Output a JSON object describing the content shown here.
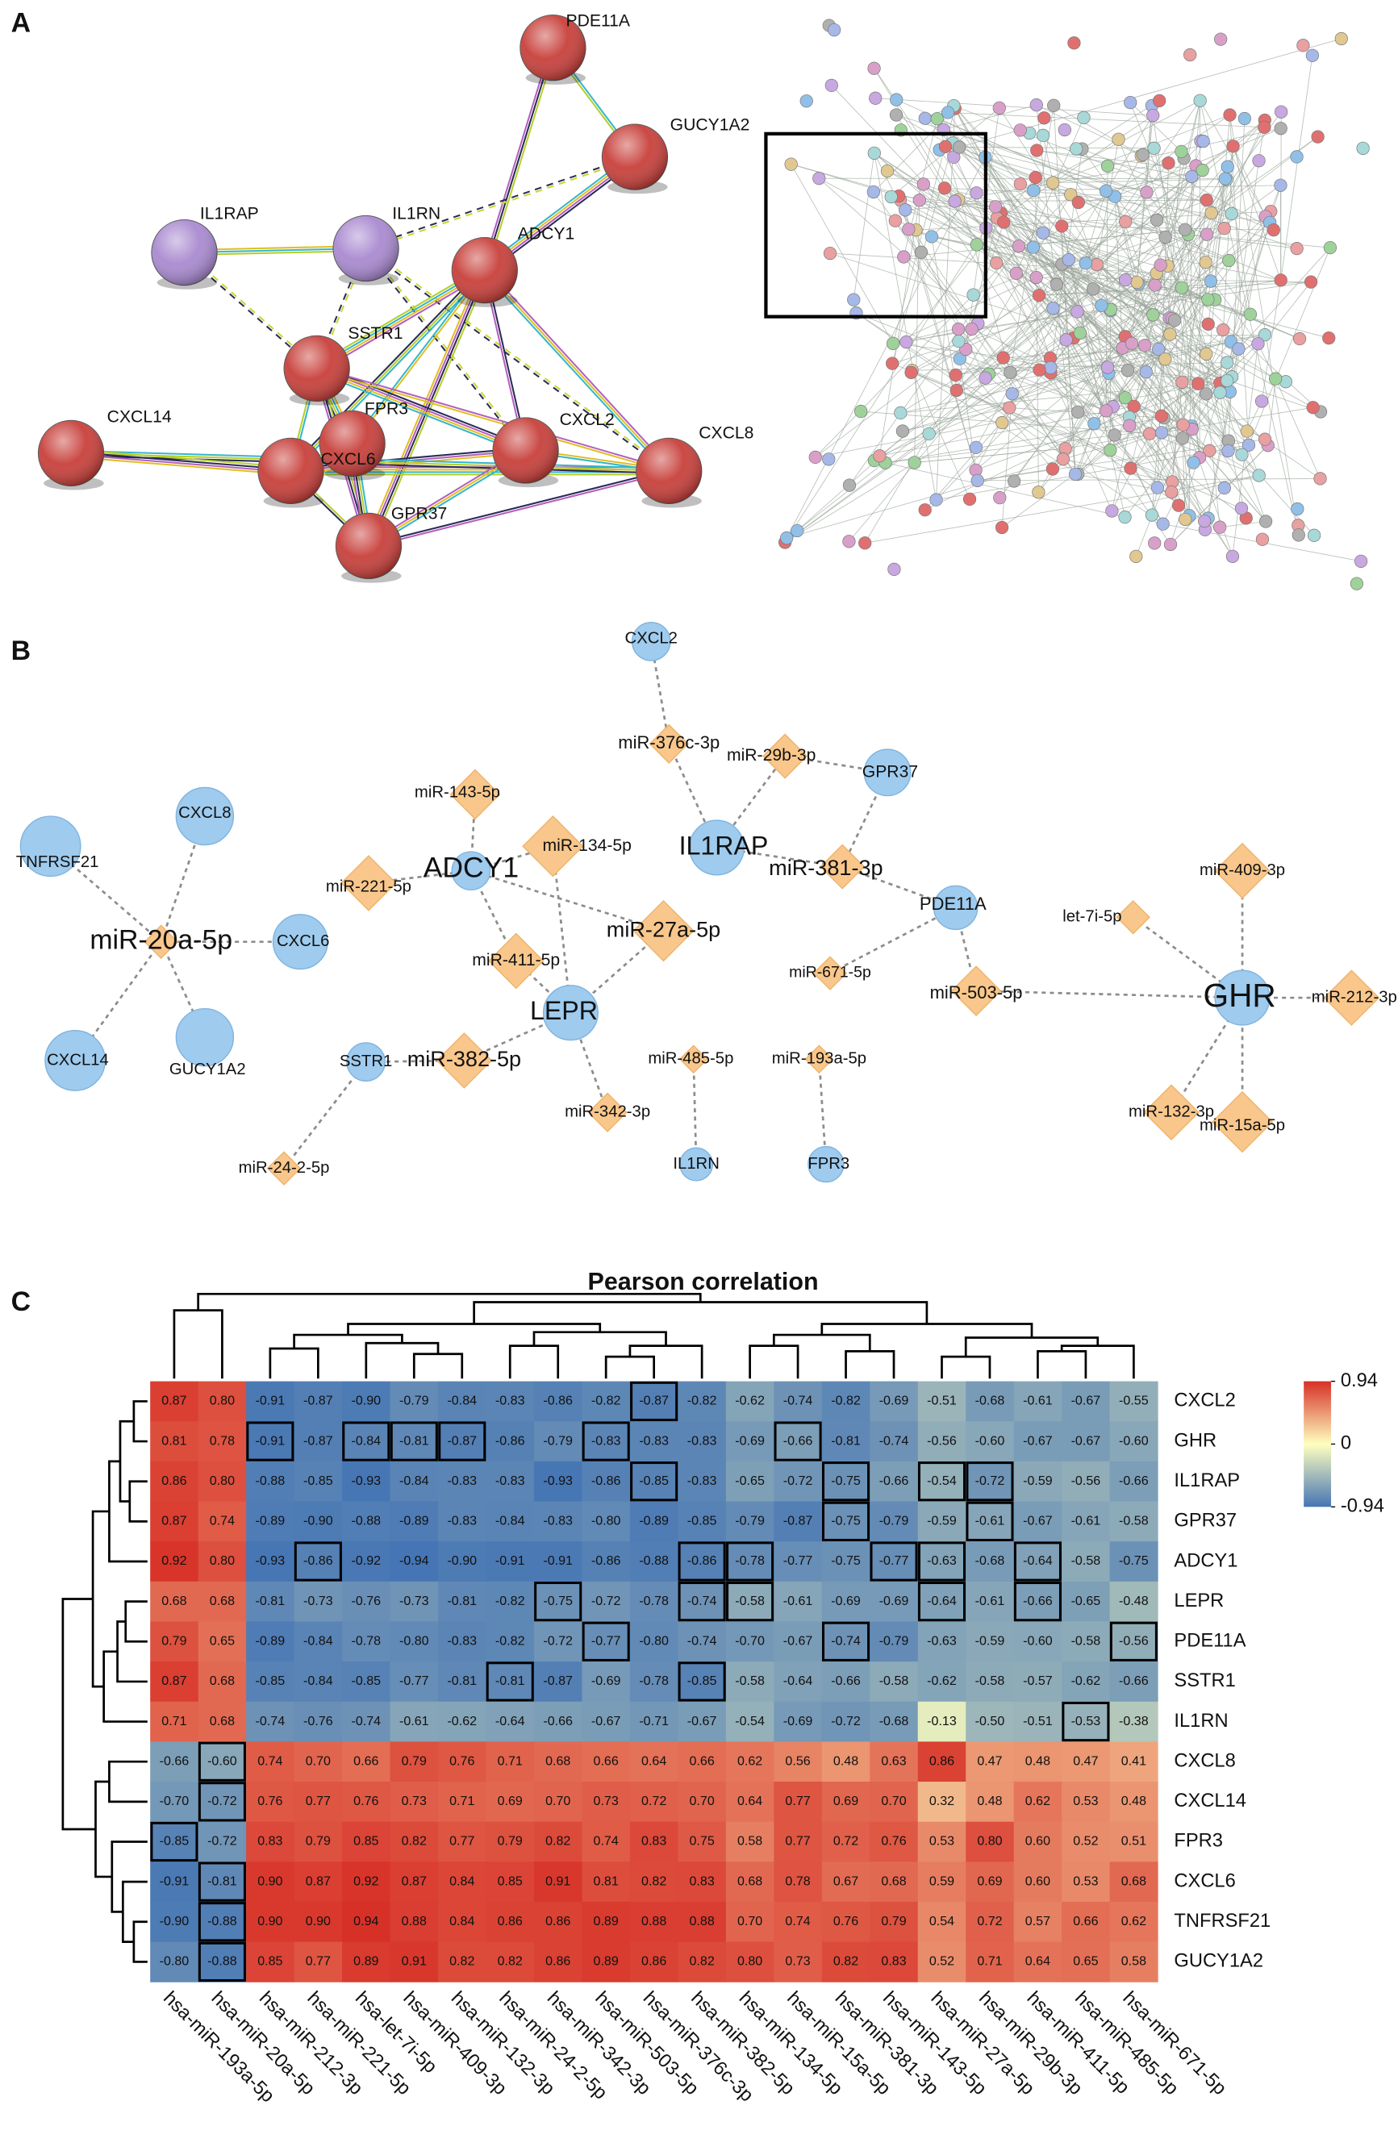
{
  "panel_a": {
    "label": "A",
    "nodes": [
      {
        "label": "PDE11A",
        "color": "#c8403b"
      },
      {
        "label": "GUCY1A2",
        "color": "#c8403b"
      },
      {
        "label": "IL1RAP",
        "color": "#a98ad0"
      },
      {
        "label": "IL1RN",
        "color": "#a98ad0"
      },
      {
        "label": "ADCY1",
        "color": "#c8403b"
      },
      {
        "label": "SSTR1",
        "color": "#c8403b"
      },
      {
        "label": "FPR3",
        "color": "#c8403b"
      },
      {
        "label": "CXCL14",
        "color": "#c8403b"
      },
      {
        "label": "CXCL2",
        "color": "#c8403b"
      },
      {
        "label": "CXCL8",
        "color": "#c8403b"
      },
      {
        "label": "CXCL6",
        "color": "#c8403b"
      },
      {
        "label": "GPR37",
        "color": "#c8403b"
      }
    ],
    "edges": [
      [
        0,
        1
      ],
      [
        0,
        4
      ],
      [
        1,
        4
      ],
      [
        1,
        3
      ],
      [
        2,
        3
      ],
      [
        3,
        5
      ],
      [
        3,
        8
      ],
      [
        3,
        9
      ],
      [
        4,
        5
      ],
      [
        4,
        6
      ],
      [
        4,
        10
      ],
      [
        4,
        11
      ],
      [
        4,
        8
      ],
      [
        4,
        9
      ],
      [
        5,
        6
      ],
      [
        5,
        10
      ],
      [
        5,
        11
      ],
      [
        5,
        8
      ],
      [
        5,
        9
      ],
      [
        6,
        10
      ],
      [
        6,
        11
      ],
      [
        10,
        11
      ],
      [
        10,
        8
      ],
      [
        10,
        9
      ],
      [
        8,
        9
      ],
      [
        7,
        9
      ],
      [
        7,
        10
      ],
      [
        11,
        9
      ],
      [
        11,
        8
      ],
      [
        2,
        5
      ]
    ]
  },
  "panel_b": {
    "label": "B",
    "gene_color": "#9ecbee",
    "mirna_color": "#f9c78b",
    "genes": [
      "CXCL2",
      "GPR37",
      "IL1RAP",
      "ADCY1",
      "PDE11A",
      "TNFRSF21",
      "CXCL8",
      "CXCL6",
      "CXCL14",
      "GUCY1A2",
      "LEPR",
      "SSTR1",
      "IL1RN",
      "FPR3",
      "GHR"
    ],
    "mirnas": [
      "miR-376c-3p",
      "miR-29b-3p",
      "miR-143-5p",
      "miR-134-5p",
      "miR-221-5p",
      "miR-27a-5p",
      "miR-411-5p",
      "miR-381-3p",
      "miR-671-5p",
      "miR-503-5p",
      "miR-20a-5p",
      "miR-382-5p",
      "miR-342-3p",
      "miR-485-5p",
      "miR-193a-5p",
      "miR-24-2-5p",
      "miR-409-3p",
      "let-7i-5p",
      "miR-212-3p",
      "miR-132-3p",
      "miR-15a-5p"
    ],
    "edges": [
      [
        5,
        10
      ],
      [
        6,
        10
      ],
      [
        7,
        10
      ],
      [
        8,
        10
      ],
      [
        9,
        10
      ],
      [
        3,
        4
      ],
      [
        3,
        2
      ],
      [
        3,
        3
      ],
      [
        3,
        6
      ],
      [
        3,
        5
      ],
      [
        2,
        0
      ],
      [
        2,
        1
      ],
      [
        2,
        7
      ],
      [
        0,
        0
      ],
      [
        1,
        1
      ],
      [
        1,
        7
      ],
      [
        4,
        7
      ],
      [
        4,
        8
      ],
      [
        4,
        9
      ],
      [
        10,
        3
      ],
      [
        10,
        5
      ],
      [
        10,
        6
      ],
      [
        10,
        11
      ],
      [
        10,
        12
      ],
      [
        11,
        11
      ],
      [
        11,
        15
      ],
      [
        12,
        13
      ],
      [
        13,
        14
      ],
      [
        14,
        9
      ],
      [
        14,
        16
      ],
      [
        14,
        17
      ],
      [
        14,
        18
      ],
      [
        14,
        19
      ],
      [
        14,
        20
      ]
    ]
  },
  "heatmap": {
    "label": "C",
    "type": "heatmap",
    "title": "Pearson correlation",
    "rows": [
      "CXCL2",
      "GHR",
      "IL1RAP",
      "GPR37",
      "ADCY1",
      "LEPR",
      "PDE11A",
      "SSTR1",
      "IL1RN",
      "CXCL8",
      "CXCL14",
      "FPR3",
      "CXCL6",
      "TNFRSF21",
      "GUCY1A2"
    ],
    "columns": [
      "hsa-miR-193a-5p",
      "hsa-miR-20a-5p",
      "hsa-miR-212-3p",
      "hsa-miR-221-5p",
      "hsa-let-7i-5p",
      "hsa-miR-409-3p",
      "hsa-miR-132-3p",
      "hsa-miR-24-2-5p",
      "hsa-miR-342-3p",
      "hsa-miR-503-5p",
      "hsa-miR-376c-3p",
      "hsa-miR-382-5p",
      "hsa-miR-134-5p",
      "hsa-miR-15a-5p",
      "hsa-miR-381-3p",
      "hsa-miR-143-5p",
      "hsa-miR-27a-5p",
      "hsa-miR-29b-3p",
      "hsa-miR-411-5p",
      "hsa-miR-485-5p",
      "hsa-miR-671-5p"
    ],
    "values": [
      [
        0.87,
        0.8,
        -0.91,
        -0.87,
        -0.9,
        -0.79,
        -0.84,
        -0.83,
        -0.86,
        -0.82,
        -0.87,
        -0.82,
        -0.62,
        -0.74,
        -0.82,
        -0.69,
        -0.51,
        -0.68,
        -0.61,
        -0.67,
        -0.55
      ],
      [
        0.81,
        0.78,
        -0.91,
        -0.87,
        -0.84,
        -0.81,
        -0.87,
        -0.86,
        -0.79,
        -0.83,
        -0.83,
        -0.83,
        -0.69,
        -0.66,
        -0.81,
        -0.74,
        -0.56,
        -0.6,
        -0.67,
        -0.67,
        -0.6
      ],
      [
        0.86,
        0.8,
        -0.88,
        -0.85,
        -0.93,
        -0.84,
        -0.83,
        -0.83,
        -0.93,
        -0.86,
        -0.85,
        -0.83,
        -0.65,
        -0.72,
        -0.75,
        -0.66,
        -0.54,
        -0.72,
        -0.59,
        -0.56,
        -0.66
      ],
      [
        0.87,
        0.74,
        -0.89,
        -0.9,
        -0.88,
        -0.89,
        -0.83,
        -0.84,
        -0.83,
        -0.8,
        -0.89,
        -0.85,
        -0.79,
        -0.87,
        -0.75,
        -0.79,
        -0.59,
        -0.61,
        -0.67,
        -0.61,
        -0.58
      ],
      [
        0.92,
        0.8,
        -0.93,
        -0.86,
        -0.92,
        -0.94,
        -0.9,
        -0.91,
        -0.91,
        -0.86,
        -0.88,
        -0.86,
        -0.78,
        -0.77,
        -0.75,
        -0.77,
        -0.63,
        -0.68,
        -0.64,
        -0.58,
        -0.75
      ],
      [
        0.68,
        0.68,
        -0.81,
        -0.73,
        -0.76,
        -0.73,
        -0.81,
        -0.82,
        -0.75,
        -0.72,
        -0.78,
        -0.74,
        -0.58,
        -0.61,
        -0.69,
        -0.69,
        -0.64,
        -0.61,
        -0.66,
        -0.65,
        -0.48
      ],
      [
        0.79,
        0.65,
        -0.89,
        -0.84,
        -0.78,
        -0.8,
        -0.83,
        -0.82,
        -0.72,
        -0.77,
        -0.8,
        -0.74,
        -0.7,
        -0.67,
        -0.74,
        -0.79,
        -0.63,
        -0.59,
        -0.6,
        -0.58,
        -0.56
      ],
      [
        0.87,
        0.68,
        -0.85,
        -0.84,
        -0.85,
        -0.77,
        -0.81,
        -0.81,
        -0.87,
        -0.69,
        -0.78,
        -0.85,
        -0.58,
        -0.64,
        -0.66,
        -0.58,
        -0.62,
        -0.58,
        -0.57,
        -0.62,
        -0.66
      ],
      [
        0.71,
        0.68,
        -0.74,
        -0.76,
        -0.74,
        -0.61,
        -0.62,
        -0.64,
        -0.66,
        -0.67,
        -0.71,
        -0.67,
        -0.54,
        -0.69,
        -0.72,
        -0.68,
        -0.13,
        -0.5,
        -0.51,
        -0.53,
        -0.38
      ],
      [
        -0.66,
        -0.6,
        0.74,
        0.7,
        0.66,
        0.79,
        0.76,
        0.71,
        0.68,
        0.66,
        0.64,
        0.66,
        0.62,
        0.56,
        0.48,
        0.63,
        0.86,
        0.47,
        0.48,
        0.47,
        0.41
      ],
      [
        -0.7,
        -0.72,
        0.76,
        0.77,
        0.76,
        0.73,
        0.71,
        0.69,
        0.7,
        0.73,
        0.72,
        0.7,
        0.64,
        0.77,
        0.69,
        0.7,
        0.32,
        0.48,
        0.62,
        0.53,
        0.48
      ],
      [
        -0.85,
        -0.72,
        0.83,
        0.79,
        0.85,
        0.82,
        0.77,
        0.79,
        0.82,
        0.74,
        0.83,
        0.75,
        0.58,
        0.77,
        0.72,
        0.76,
        0.53,
        0.8,
        0.6,
        0.52,
        0.51
      ],
      [
        -0.91,
        -0.81,
        0.9,
        0.87,
        0.92,
        0.87,
        0.84,
        0.85,
        0.91,
        0.81,
        0.82,
        0.83,
        0.68,
        0.78,
        0.67,
        0.68,
        0.59,
        0.69,
        0.6,
        0.53,
        0.68
      ],
      [
        -0.9,
        -0.88,
        0.9,
        0.9,
        0.94,
        0.88,
        0.84,
        0.86,
        0.86,
        0.89,
        0.88,
        0.88,
        0.7,
        0.74,
        0.76,
        0.79,
        0.54,
        0.72,
        0.57,
        0.66,
        0.62
      ],
      [
        -0.8,
        -0.88,
        0.85,
        0.77,
        0.89,
        0.91,
        0.82,
        0.82,
        0.86,
        0.89,
        0.86,
        0.82,
        0.8,
        0.73,
        0.82,
        0.83,
        0.52,
        0.71,
        0.64,
        0.65,
        0.58
      ]
    ],
    "value_labels": [
      [
        "0.87",
        "0.80",
        "-0.91",
        "-0.87",
        "-0.90",
        "-0.79",
        "-0.84",
        "-0.83",
        "-0.86",
        "-0.82",
        "-0.87",
        "-0.82",
        "-0.62",
        "-0.74",
        "-0.82",
        "-0.69",
        "-0.51",
        "-0.68",
        "-0.61",
        "-0.67",
        "-0.55"
      ],
      [
        "0.81",
        "0.78",
        "-0.91",
        "-0.87",
        "-0.84",
        "-0.81",
        "-0.87",
        "-0.86",
        "-0.79",
        "-0.83",
        "-0.83",
        "-0.83",
        "-0.69",
        "-0.66",
        "-0.81",
        "-0.74",
        "-0.56",
        "-0.60",
        "-0.67",
        "-0.67",
        "-0.60"
      ],
      [
        "0.86",
        "0.80",
        "-0.88",
        "-0.85",
        "-0.93",
        "-0.84",
        "-0.83",
        "-0.83",
        "-0.93",
        "-0.86",
        "-0.85",
        "-0.83",
        "-0.65",
        "-0.72",
        "-0.75",
        "-0.66",
        "-0.54",
        "-0.72",
        "-0.59",
        "-0.56",
        "-0.66"
      ],
      [
        "0.87",
        "0.74",
        "-0.89",
        "-0.90",
        "-0.88",
        "-0.89",
        "-0.83",
        "-0.84",
        "-0.83",
        "-0.80",
        "-0.89",
        "-0.85",
        "-0.79",
        "-0.87",
        "-0.75",
        "-0.79",
        "-0.59",
        "-0.61",
        "-0.67",
        "-0.61",
        "-0.58"
      ],
      [
        "0.92",
        "0.80",
        "-0.93",
        "-0.86",
        "-0.92",
        "-0.94",
        "-0.90",
        "-0.91",
        "-0.91",
        "-0.86",
        "-0.88",
        "-0.86",
        "-0.78",
        "-0.77",
        "-0.75",
        "-0.77",
        "-0.63",
        "-0.68",
        "-0.64",
        "-0.58",
        "-0.75"
      ],
      [
        "0.68",
        "0.68",
        "-0.81",
        "-0.73",
        "-0.76",
        "-0.73",
        "-0.81",
        "-0.82",
        "-0.75",
        "-0.72",
        "-0.78",
        "-0.74",
        "-0.58",
        "-0.61",
        "-0.69",
        "-0.69",
        "-0.64",
        "-0.61",
        "-0.66",
        "-0.65",
        "-0.48"
      ],
      [
        "0.79",
        "0.65",
        "-0.89",
        "-0.84",
        "-0.78",
        "-0.80",
        "-0.83",
        "-0.82",
        "-0.72",
        "-0.77",
        "-0.80",
        "-0.74",
        "-0.70",
        "-0.67",
        "-0.74",
        "-0.79",
        "-0.63",
        "-0.59",
        "-0.60",
        "-0.58",
        "-0.56"
      ],
      [
        "0.87",
        "0.68",
        "-0.85",
        "-0.84",
        "-0.85",
        "-0.77",
        "-0.81",
        "-0.81",
        "-0.87",
        "-0.69",
        "-0.78",
        "-0.85",
        "-0.58",
        "-0.64",
        "-0.66",
        "-0.58",
        "-0.62",
        "-0.58",
        "-0.57",
        "-0.62",
        "-0.66"
      ],
      [
        "0.71",
        "0.68",
        "-0.74",
        "-0.76",
        "-0.74",
        "-0.61",
        "-0.62",
        "-0.64",
        "-0.66",
        "-0.67",
        "-0.71",
        "-0.67",
        "-0.54",
        "-0.69",
        "-0.72",
        "-0.68",
        "-0.13",
        "-0.50",
        "-0.51",
        "-0.53",
        "-0.38"
      ],
      [
        "-0.66",
        "-0.60",
        "0.74",
        "0.70",
        "0.66",
        "0.79",
        "0.76",
        "0.71",
        "0.68",
        "0.66",
        "0.64",
        "0.66",
        "0.62",
        "0.56",
        "0.48",
        "0.63",
        "0.86",
        "0.47",
        "0.48",
        "0.47",
        "0.41"
      ],
      [
        "-0.70",
        "-0.72",
        "0.76",
        "0.77",
        "0.76",
        "0.73",
        "0.71",
        "0.69",
        "0.70",
        "0.73",
        "0.72",
        "0.70",
        "0.64",
        "0.77",
        "0.69",
        "0.70",
        "0.32",
        "0.48",
        "0.62",
        "0.53",
        "0.48"
      ],
      [
        "-0.85",
        "-0.72",
        "0.83",
        "0.79",
        "0.85",
        "0.82",
        "0.77",
        "0.79",
        "0.82",
        "0.74",
        "0.83",
        "0.75",
        "0.58",
        "0.77",
        "0.72",
        "0.76",
        "0.53",
        "0.80",
        "0.60",
        "0.52",
        "0.51"
      ],
      [
        "-0.91",
        "-0.81",
        "0.90",
        "0.87",
        "0.92",
        "0.87",
        "0.84",
        "0.85",
        "0.91",
        "0.81",
        "0.82",
        "0.83",
        "0.68",
        "0.78",
        "0.67",
        "0.68",
        "0.59",
        "0.69",
        "0.60",
        "0.53",
        "0.68"
      ],
      [
        "-0.90",
        "-0.88",
        "0.90",
        "0.90",
        "0.94",
        "0.88",
        "0.84",
        "0.86",
        "0.86",
        "0.89",
        "0.88",
        "0.88",
        "0.70",
        "0.74",
        "0.76",
        "0.79",
        "0.54",
        "0.72",
        "0.57",
        "0.66",
        "0.62"
      ],
      [
        "-0.80",
        "-0.88",
        "0.85",
        "0.77",
        "0.89",
        "0.91",
        "0.82",
        "0.82",
        "0.86",
        "0.89",
        "0.86",
        "0.82",
        "0.80",
        "0.73",
        "0.82",
        "0.83",
        "0.52",
        "0.71",
        "0.64",
        "0.65",
        "0.58"
      ]
    ],
    "boxed": [
      [
        0,
        10
      ],
      [
        1,
        2
      ],
      [
        1,
        4
      ],
      [
        1,
        5
      ],
      [
        1,
        6
      ],
      [
        1,
        9
      ],
      [
        1,
        13
      ],
      [
        2,
        10
      ],
      [
        2,
        14
      ],
      [
        2,
        16
      ],
      [
        2,
        17
      ],
      [
        3,
        14
      ],
      [
        3,
        17
      ],
      [
        4,
        3
      ],
      [
        4,
        11
      ],
      [
        4,
        12
      ],
      [
        4,
        15
      ],
      [
        4,
        16
      ],
      [
        4,
        18
      ],
      [
        5,
        8
      ],
      [
        5,
        11
      ],
      [
        5,
        12
      ],
      [
        5,
        16
      ],
      [
        5,
        18
      ],
      [
        6,
        9
      ],
      [
        6,
        14
      ],
      [
        6,
        20
      ],
      [
        7,
        7
      ],
      [
        7,
        11
      ],
      [
        8,
        19
      ],
      [
        9,
        1
      ],
      [
        10,
        1
      ],
      [
        11,
        0
      ],
      [
        12,
        1
      ],
      [
        13,
        1
      ],
      [
        14,
        1
      ]
    ],
    "colors": [
      "#4575b4",
      "#ffffbf",
      "#d73027"
    ],
    "clim": [
      -0.94,
      0.94
    ],
    "cticks": [
      0.94,
      0,
      -0.94
    ]
  }
}
